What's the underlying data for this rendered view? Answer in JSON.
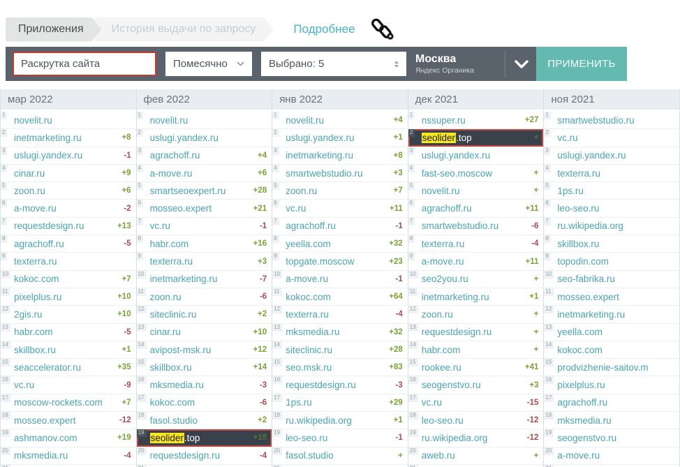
{
  "breadcrumb": {
    "tabs": [
      {
        "label": "Приложения",
        "active": true
      },
      {
        "label": "История выдачи по запросу",
        "active": false
      }
    ],
    "link_label": "Подробнее",
    "link_icon": "chain-link-icon"
  },
  "toolbar": {
    "query_input": {
      "value": "Раскрутка сайта",
      "border_color": "#c53b32"
    },
    "period_select": {
      "value": "Помесячно",
      "icon": "chevron-down-icon"
    },
    "count_select": {
      "value": "Выбрано: 5",
      "icon": "up-down-spinner-icon"
    },
    "region": {
      "city": "Москва",
      "engine": "Яндекс Органика",
      "icon": "chevron-down-icon"
    },
    "apply_label": "ПРИМЕНИТЬ"
  },
  "colors": {
    "toolbar_bg": "#5a636b",
    "accent_teal": "#64b9b1",
    "link_teal": "#43b3c8",
    "domain_teal": "#4aa4b4",
    "positive_green": "#7aa238",
    "negative_red": "#ad4a50",
    "highlight_row_bg": "#39414a",
    "highlight_border": "#bb4843",
    "highlight_mark": "#f8e71e",
    "header_bg": "#e9edf0"
  },
  "table": {
    "columns": [
      {
        "header": "мар 2022",
        "rows": [
          {
            "rank": 1,
            "domain": "novelit.ru",
            "change": ""
          },
          {
            "rank": 2,
            "domain": "inetmarketing.ru",
            "change": "+8"
          },
          {
            "rank": 3,
            "domain": "uslugi.yandex.ru",
            "change": "-1"
          },
          {
            "rank": 4,
            "domain": "cinar.ru",
            "change": "+9"
          },
          {
            "rank": 5,
            "domain": "zoon.ru",
            "change": "+6"
          },
          {
            "rank": 6,
            "domain": "a-move.ru",
            "change": "-2"
          },
          {
            "rank": 7,
            "domain": "requestdesign.ru",
            "change": "+13"
          },
          {
            "rank": 8,
            "domain": "agrachoff.ru",
            "change": "-5"
          },
          {
            "rank": 9,
            "domain": "texterra.ru",
            "change": ""
          },
          {
            "rank": 10,
            "domain": "kokoc.com",
            "change": "+7"
          },
          {
            "rank": 11,
            "domain": "pixelplus.ru",
            "change": "+10"
          },
          {
            "rank": 12,
            "domain": "2gis.ru",
            "change": "+10"
          },
          {
            "rank": 13,
            "domain": "habr.com",
            "change": "-5"
          },
          {
            "rank": 14,
            "domain": "skillbox.ru",
            "change": "+1"
          },
          {
            "rank": 15,
            "domain": "seaccelerator.ru",
            "change": "+35"
          },
          {
            "rank": 16,
            "domain": "vc.ru",
            "change": "-9"
          },
          {
            "rank": 17,
            "domain": "moscow-rockets.com",
            "change": "+7"
          },
          {
            "rank": 18,
            "domain": "mosseo.expert",
            "change": "-12"
          },
          {
            "rank": 19,
            "domain": "ashmanov.com",
            "change": "+19"
          },
          {
            "rank": 20,
            "domain": "mksmedia.ru",
            "change": "-4"
          },
          {
            "rank": 21,
            "domain": "",
            "change": ""
          }
        ]
      },
      {
        "header": "фев 2022",
        "rows": [
          {
            "rank": 1,
            "domain": "novelit.ru",
            "change": ""
          },
          {
            "rank": 2,
            "domain": "uslugi.yandex.ru",
            "change": ""
          },
          {
            "rank": 3,
            "domain": "agrachoff.ru",
            "change": "+4"
          },
          {
            "rank": 4,
            "domain": "a-move.ru",
            "change": "+6"
          },
          {
            "rank": 5,
            "domain": "smartseoexpert.ru",
            "change": "+28"
          },
          {
            "rank": 6,
            "domain": "mosseo.expert",
            "change": "+21"
          },
          {
            "rank": 7,
            "domain": "vc.ru",
            "change": "-1"
          },
          {
            "rank": 8,
            "domain": "habr.com",
            "change": "+16"
          },
          {
            "rank": 9,
            "domain": "texterra.ru",
            "change": "+3"
          },
          {
            "rank": 10,
            "domain": "inetmarketing.ru",
            "change": "-7"
          },
          {
            "rank": 11,
            "domain": "zoon.ru",
            "change": "-6"
          },
          {
            "rank": 12,
            "domain": "siteclinic.ru",
            "change": "+2"
          },
          {
            "rank": 13,
            "domain": "cinar.ru",
            "change": "+10"
          },
          {
            "rank": 14,
            "domain": "avipost-msk.ru",
            "change": "+12"
          },
          {
            "rank": 15,
            "domain": "skillbox.ru",
            "change": "+14"
          },
          {
            "rank": 16,
            "domain": "mksmedia.ru",
            "change": "-3"
          },
          {
            "rank": 17,
            "domain": "kokoc.com",
            "change": "-6"
          },
          {
            "rank": 18,
            "domain": "fasol.studio",
            "change": "+2"
          },
          {
            "rank": 19,
            "domain": "seolider.top",
            "change": "+18",
            "highlight": true,
            "highlight_word": "seolider",
            "domain_rest": ".top"
          },
          {
            "rank": 20,
            "domain": "requestdesign.ru",
            "change": "-4"
          },
          {
            "rank": 21,
            "domain": "",
            "change": ""
          }
        ]
      },
      {
        "header": "янв 2022",
        "rows": [
          {
            "rank": 1,
            "domain": "novelit.ru",
            "change": "+4"
          },
          {
            "rank": 2,
            "domain": "uslugi.yandex.ru",
            "change": "+1"
          },
          {
            "rank": 3,
            "domain": "inetmarketing.ru",
            "change": "+8"
          },
          {
            "rank": 4,
            "domain": "smartwebstudio.ru",
            "change": "+3"
          },
          {
            "rank": 5,
            "domain": "zoon.ru",
            "change": "+7"
          },
          {
            "rank": 6,
            "domain": "vc.ru",
            "change": "+11"
          },
          {
            "rank": 7,
            "domain": "agrachoff.ru",
            "change": "-1"
          },
          {
            "rank": 8,
            "domain": "yeella.com",
            "change": "+32"
          },
          {
            "rank": 9,
            "domain": "topgate.moscow",
            "change": "+23"
          },
          {
            "rank": 10,
            "domain": "a-move.ru",
            "change": "-1"
          },
          {
            "rank": 11,
            "domain": "kokoc.com",
            "change": "+64"
          },
          {
            "rank": 12,
            "domain": "texterra.ru",
            "change": "-4"
          },
          {
            "rank": 13,
            "domain": "mksmedia.ru",
            "change": "+32"
          },
          {
            "rank": 14,
            "domain": "siteclinic.ru",
            "change": "+28"
          },
          {
            "rank": 15,
            "domain": "seo.msk.ru",
            "change": "+83"
          },
          {
            "rank": 16,
            "domain": "requestdesign.ru",
            "change": "-3"
          },
          {
            "rank": 17,
            "domain": "1ps.ru",
            "change": "+29"
          },
          {
            "rank": 18,
            "domain": "ru.wikipedia.org",
            "change": "+1"
          },
          {
            "rank": 19,
            "domain": "leo-seo.ru",
            "change": "-1"
          },
          {
            "rank": 20,
            "domain": "fasol.studio",
            "change": "+"
          },
          {
            "rank": 21,
            "domain": "",
            "change": ""
          }
        ]
      },
      {
        "header": "дек 2021",
        "rows": [
          {
            "rank": 1,
            "domain": "nssuper.ru",
            "change": "+27"
          },
          {
            "rank": 2,
            "domain": "seolider.top",
            "change": "+",
            "highlight": true,
            "highlight_word": "seolider",
            "domain_rest": ".top"
          },
          {
            "rank": 3,
            "domain": "uslugi.yandex.ru",
            "change": ""
          },
          {
            "rank": 4,
            "domain": "fast-seo.moscow",
            "change": "+"
          },
          {
            "rank": 5,
            "domain": "novelit.ru",
            "change": "+"
          },
          {
            "rank": 6,
            "domain": "agrachoff.ru",
            "change": "+11"
          },
          {
            "rank": 7,
            "domain": "smartwebstudio.ru",
            "change": "-6"
          },
          {
            "rank": 8,
            "domain": "texterra.ru",
            "change": "-4"
          },
          {
            "rank": 9,
            "domain": "a-move.ru",
            "change": "+11"
          },
          {
            "rank": 10,
            "domain": "seo2you.ru",
            "change": "+"
          },
          {
            "rank": 11,
            "domain": "inetmarketing.ru",
            "change": "+1"
          },
          {
            "rank": 12,
            "domain": "zoon.ru",
            "change": "+"
          },
          {
            "rank": 13,
            "domain": "requestdesign.ru",
            "change": "+"
          },
          {
            "rank": 14,
            "domain": "habr.com",
            "change": "+"
          },
          {
            "rank": 15,
            "domain": "rookee.ru",
            "change": "+41"
          },
          {
            "rank": 16,
            "domain": "seogenstvo.ru",
            "change": "+3"
          },
          {
            "rank": 17,
            "domain": "vc.ru",
            "change": "-15"
          },
          {
            "rank": 18,
            "domain": "leo-seo.ru",
            "change": "-12"
          },
          {
            "rank": 19,
            "domain": "ru.wikipedia.org",
            "change": "-12"
          },
          {
            "rank": 20,
            "domain": "aweb.ru",
            "change": "+"
          },
          {
            "rank": 21,
            "domain": "",
            "change": ""
          }
        ]
      },
      {
        "header": "ноя 2021",
        "rows": [
          {
            "rank": 1,
            "domain": "smartwebstudio.ru",
            "change": ""
          },
          {
            "rank": 2,
            "domain": "vc.ru",
            "change": ""
          },
          {
            "rank": 3,
            "domain": "uslugi.yandex.ru",
            "change": ""
          },
          {
            "rank": 4,
            "domain": "texterra.ru",
            "change": ""
          },
          {
            "rank": 5,
            "domain": "1ps.ru",
            "change": ""
          },
          {
            "rank": 6,
            "domain": "leo-seo.ru",
            "change": ""
          },
          {
            "rank": 7,
            "domain": "ru.wikipedia.org",
            "change": ""
          },
          {
            "rank": 8,
            "domain": "skillbox.ru",
            "change": ""
          },
          {
            "rank": 9,
            "domain": "topodin.com",
            "change": ""
          },
          {
            "rank": 10,
            "domain": "seo-fabrika.ru",
            "change": ""
          },
          {
            "rank": 11,
            "domain": "mosseo.expert",
            "change": ""
          },
          {
            "rank": 12,
            "domain": "inetmarketing.ru",
            "change": ""
          },
          {
            "rank": 13,
            "domain": "yeella.com",
            "change": ""
          },
          {
            "rank": 14,
            "domain": "kokoc.com",
            "change": ""
          },
          {
            "rank": 15,
            "domain": "prodvizhenie-saitov.m",
            "change": ""
          },
          {
            "rank": 16,
            "domain": "pixelplus.ru",
            "change": ""
          },
          {
            "rank": 17,
            "domain": "agrachoff.ru",
            "change": ""
          },
          {
            "rank": 18,
            "domain": "mksmedia.ru",
            "change": ""
          },
          {
            "rank": 19,
            "domain": "seogenstvo.ru",
            "change": ""
          },
          {
            "rank": 20,
            "domain": "a-move.ru",
            "change": ""
          },
          {
            "rank": 21,
            "domain": "",
            "change": ""
          }
        ]
      }
    ]
  }
}
